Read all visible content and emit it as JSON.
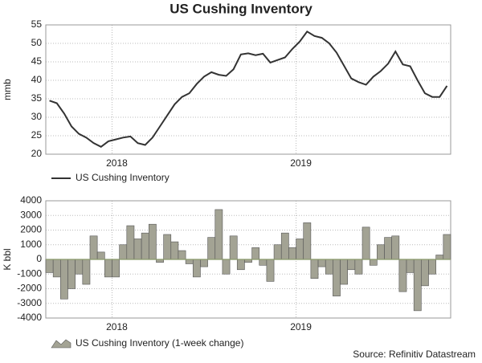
{
  "source": "Source: Refinitiv Datastream",
  "chart_data": [
    {
      "type": "line",
      "title": "US Cushing Inventory",
      "ylabel": "mmb",
      "grid": true,
      "x": [
        2017.66,
        2017.7,
        2017.74,
        2017.78,
        2017.82,
        2017.86,
        2017.9,
        2017.94,
        2017.98,
        2018.02,
        2018.06,
        2018.1,
        2018.14,
        2018.18,
        2018.22,
        2018.26,
        2018.3,
        2018.34,
        2018.38,
        2018.42,
        2018.46,
        2018.5,
        2018.54,
        2018.58,
        2018.62,
        2018.66,
        2018.7,
        2018.74,
        2018.78,
        2018.82,
        2018.86,
        2018.9,
        2018.94,
        2018.98,
        2019.02,
        2019.06,
        2019.1,
        2019.14,
        2019.18,
        2019.22,
        2019.26,
        2019.3,
        2019.34,
        2019.38,
        2019.42,
        2019.46,
        2019.5,
        2019.54,
        2019.58,
        2019.62,
        2019.66,
        2019.7,
        2019.74,
        2019.78,
        2019.82
      ],
      "series": [
        {
          "name": "US Cushing Inventory",
          "color": "#333333",
          "values": [
            34.5,
            33.8,
            31,
            27.5,
            25.5,
            24.5,
            23,
            22,
            23.5,
            24,
            24.5,
            24.8,
            23,
            22.5,
            24.5,
            27.5,
            30.5,
            33.5,
            35.5,
            36.5,
            39,
            41,
            42.2,
            41.5,
            41.2,
            43,
            47,
            47.3,
            46.8,
            47.2,
            44.8,
            45.5,
            46.2,
            48.5,
            50.5,
            53.2,
            52,
            51.5,
            50,
            47.5,
            44,
            40.5,
            39.5,
            38.8,
            41,
            42.5,
            44.5,
            47.8,
            44.3,
            43.8,
            40,
            36.5,
            35.5,
            35.5,
            38.5
          ]
        }
      ],
      "xlim": [
        2017.64,
        2019.84
      ],
      "xticks": [
        2018,
        2019
      ],
      "ylim": [
        20,
        55
      ],
      "yticks": [
        20,
        25,
        30,
        35,
        40,
        45,
        50,
        55
      ]
    },
    {
      "type": "bar",
      "ylabel": "K bbl",
      "grid": true,
      "x": [
        2017.66,
        2017.7,
        2017.74,
        2017.78,
        2017.82,
        2017.86,
        2017.9,
        2017.94,
        2017.98,
        2018.02,
        2018.06,
        2018.1,
        2018.14,
        2018.18,
        2018.22,
        2018.26,
        2018.3,
        2018.34,
        2018.38,
        2018.42,
        2018.46,
        2018.5,
        2018.54,
        2018.58,
        2018.62,
        2018.66,
        2018.7,
        2018.74,
        2018.78,
        2018.82,
        2018.86,
        2018.9,
        2018.94,
        2018.98,
        2019.02,
        2019.06,
        2019.1,
        2019.14,
        2019.18,
        2019.22,
        2019.26,
        2019.3,
        2019.34,
        2019.38,
        2019.42,
        2019.46,
        2019.5,
        2019.54,
        2019.58,
        2019.62,
        2019.66,
        2019.7,
        2019.74,
        2019.78,
        2019.82
      ],
      "series": [
        {
          "name": "US Cushing Inventory (1-week change)",
          "color": "#a3a394",
          "values": [
            -900,
            -1200,
            -2700,
            -2000,
            -1000,
            -1700,
            1600,
            500,
            -1200,
            -1200,
            1000,
            2300,
            1400,
            1800,
            2400,
            -200,
            1700,
            1200,
            600,
            -300,
            -1200,
            -500,
            1500,
            3400,
            -1000,
            1600,
            -700,
            -200,
            800,
            -400,
            -1500,
            1000,
            1800,
            800,
            1400,
            2500,
            -1300,
            -500,
            -1000,
            -2500,
            -1700,
            -700,
            -1000,
            2200,
            -400,
            1000,
            1500,
            1600,
            -2200,
            -900,
            -3500,
            -1800,
            -1000,
            300,
            1700
          ]
        }
      ],
      "xlim": [
        2017.64,
        2019.84
      ],
      "xticks": [
        2018,
        2019
      ],
      "ylim": [
        -4000,
        4000
      ],
      "yticks": [
        -4000,
        -3000,
        -2000,
        -1000,
        0,
        1000,
        2000,
        3000,
        4000
      ]
    }
  ]
}
